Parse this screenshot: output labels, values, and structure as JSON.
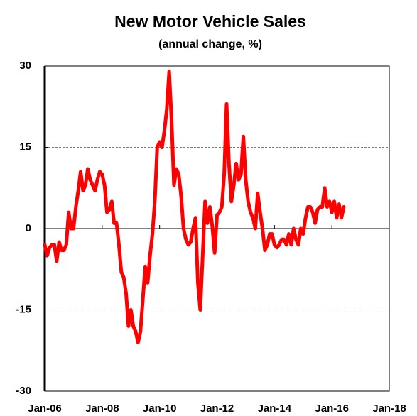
{
  "chart_data": {
    "type": "line",
    "title": "New Motor Vehicle Sales",
    "subtitle": "(annual change, %)",
    "categories": [
      "Jan-06",
      null,
      null,
      null,
      null,
      null,
      null,
      null,
      null,
      null,
      null,
      null,
      null,
      null,
      null,
      null,
      null,
      null,
      null,
      null,
      null,
      null,
      null,
      null,
      "Jan-08",
      null,
      null,
      null,
      null,
      null,
      null,
      null,
      null,
      null,
      null,
      null,
      null,
      null,
      null,
      null,
      null,
      null,
      null,
      null,
      null,
      null,
      null,
      null,
      "Jan-10",
      null,
      null,
      null,
      null,
      null,
      null,
      null,
      null,
      null,
      null,
      null,
      null,
      null,
      null,
      null,
      null,
      null,
      null,
      null,
      null,
      null,
      null,
      null,
      "Jan-12",
      null,
      null,
      null,
      null,
      null,
      null,
      null,
      null,
      null,
      null,
      null,
      null,
      null,
      null,
      null,
      null,
      null,
      null,
      null,
      null,
      null,
      null,
      null,
      "Jan-14",
      null,
      null,
      null,
      null,
      null,
      null,
      null,
      null,
      null,
      null,
      null,
      null,
      null,
      null,
      null,
      null,
      null,
      null,
      null,
      null,
      null,
      null,
      null,
      "Jan-16",
      null,
      null,
      null,
      null,
      null,
      null,
      null,
      null,
      null,
      null,
      null,
      null,
      null,
      null,
      null,
      null,
      null,
      null,
      null,
      null,
      null,
      null,
      null,
      "Jan-18"
    ],
    "series": [
      {
        "color": "#ff0000",
        "values": [
          -3,
          -5,
          -3.5,
          -3,
          -3,
          -6,
          -2.5,
          -4,
          -4,
          -3,
          3,
          0,
          0,
          4,
          7,
          10.5,
          7,
          8,
          11,
          9,
          8,
          7,
          9,
          10.5,
          10,
          8,
          3,
          3.5,
          5,
          1,
          1,
          -3,
          -8,
          -9,
          -12,
          -18,
          -15,
          -18,
          -19,
          -21,
          -19,
          -13,
          -7,
          -10,
          -5,
          -1,
          5,
          15,
          16,
          15,
          18,
          22,
          29,
          20,
          8,
          11,
          10,
          6,
          0,
          -2,
          -3,
          -2.5,
          0,
          2,
          -10,
          -15,
          -5,
          5,
          1,
          4,
          0.5,
          -4.5,
          2.5,
          3,
          4,
          10,
          23,
          12,
          5,
          8,
          12,
          9,
          10,
          17,
          9,
          5,
          3,
          2,
          0,
          6.5,
          3,
          0,
          -4,
          -3,
          -1,
          -1,
          -3,
          -3.5,
          -3,
          -2,
          -2,
          -3,
          -1,
          -3,
          0,
          -2,
          -3,
          0,
          -1,
          2,
          4,
          4,
          3,
          1,
          3.5,
          4,
          4,
          7.5,
          4,
          5,
          3,
          5,
          2,
          4.5,
          2,
          4,
          null,
          null,
          null,
          null,
          null,
          null,
          null,
          null,
          null,
          null,
          null,
          null,
          null,
          null,
          null,
          null,
          null,
          null,
          null
        ]
      }
    ],
    "ylim": [
      -30,
      30
    ],
    "yticks": [
      -30,
      -15,
      0,
      15,
      30
    ],
    "grid": true
  }
}
